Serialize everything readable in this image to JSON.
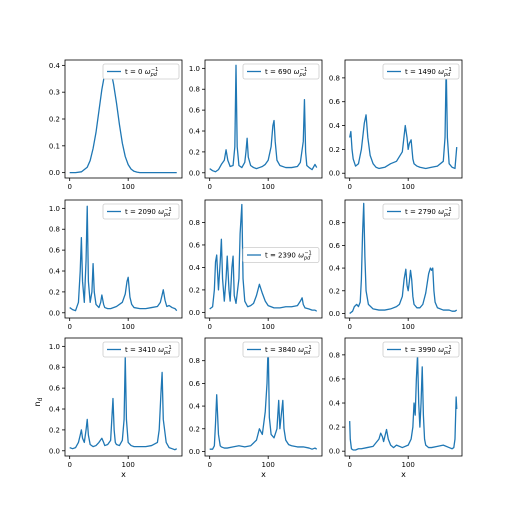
{
  "figure": {
    "ylabel": "n_d",
    "xlabel": "x"
  },
  "colors": {
    "series": "#1f77b4"
  },
  "chart_data": [
    {
      "type": "line",
      "legend": "t = 0 ωpd⁻¹",
      "legend_t": "t = 0 ",
      "legend_loc": "upper-right",
      "xlim": [
        -8,
        192
      ],
      "ylim": [
        -0.02,
        0.42
      ],
      "xticks": [
        0,
        100
      ],
      "yticks": [
        0.0,
        0.1,
        0.2,
        0.3,
        0.4
      ],
      "ytick_labels": [
        "0.0",
        "0.1",
        "0.2",
        "0.3",
        "0.4"
      ],
      "xtick_labels": [
        "0",
        "100"
      ],
      "x": [
        0,
        10,
        20,
        30,
        35,
        40,
        45,
        50,
        55,
        60,
        63,
        66,
        70,
        75,
        80,
        85,
        90,
        95,
        100,
        105,
        110,
        115,
        120,
        130,
        140,
        150,
        160,
        170,
        183
      ],
      "y": [
        0.0,
        0.0,
        0.003,
        0.02,
        0.045,
        0.09,
        0.15,
        0.23,
        0.31,
        0.37,
        0.395,
        0.4,
        0.385,
        0.33,
        0.26,
        0.18,
        0.11,
        0.06,
        0.03,
        0.013,
        0.005,
        0.002,
        0.0,
        0.0,
        0.0,
        0.0,
        0.0,
        0.0,
        0.0
      ]
    },
    {
      "type": "line",
      "legend": "t = 690 ωpd⁻¹",
      "legend_t": "t = 690 ",
      "legend_loc": "upper-right",
      "xlim": [
        -8,
        192
      ],
      "ylim": [
        -0.05,
        1.08
      ],
      "xticks": [
        0,
        100
      ],
      "yticks": [
        0.0,
        0.2,
        0.4,
        0.6,
        0.8,
        1.0
      ],
      "ytick_labels": [
        "0.0",
        "0.2",
        "0.4",
        "0.6",
        "0.8",
        "1.0"
      ],
      "xtick_labels": [
        "0",
        "100"
      ],
      "x": [
        0,
        5,
        10,
        15,
        20,
        25,
        28,
        31,
        35,
        40,
        43,
        45,
        47,
        50,
        55,
        60,
        62,
        64,
        66,
        70,
        75,
        80,
        85,
        90,
        95,
        100,
        105,
        108,
        110,
        112,
        115,
        120,
        130,
        140,
        150,
        155,
        160,
        162,
        164,
        166,
        170,
        175,
        180,
        183
      ],
      "y": [
        0.04,
        0.02,
        0.01,
        0.03,
        0.08,
        0.12,
        0.22,
        0.12,
        0.06,
        0.07,
        0.25,
        1.03,
        0.25,
        0.07,
        0.05,
        0.1,
        0.2,
        0.33,
        0.15,
        0.07,
        0.05,
        0.04,
        0.05,
        0.06,
        0.08,
        0.12,
        0.25,
        0.45,
        0.5,
        0.3,
        0.12,
        0.07,
        0.05,
        0.05,
        0.06,
        0.1,
        0.3,
        0.7,
        0.2,
        0.07,
        0.05,
        0.03,
        0.08,
        0.05
      ]
    },
    {
      "type": "line",
      "legend": "t = 1490 ωpd⁻¹",
      "legend_t": "t = 1490 ",
      "legend_loc": "upper-right",
      "xlim": [
        -8,
        192
      ],
      "ylim": [
        -0.04,
        0.95
      ],
      "xticks": [
        0,
        100
      ],
      "yticks": [
        0.0,
        0.2,
        0.4,
        0.6,
        0.8
      ],
      "ytick_labels": [
        "0.0",
        "0.2",
        "0.4",
        "0.6",
        "0.8"
      ],
      "xtick_labels": [
        "0",
        "100"
      ],
      "x": [
        0,
        2,
        4,
        6,
        10,
        15,
        20,
        25,
        28,
        31,
        35,
        40,
        45,
        50,
        60,
        70,
        80,
        90,
        95,
        98,
        100,
        102,
        105,
        108,
        110,
        115,
        120,
        130,
        140,
        150,
        160,
        163,
        165,
        167,
        170,
        175,
        180,
        183
      ],
      "y": [
        0.3,
        0.35,
        0.2,
        0.12,
        0.06,
        0.08,
        0.2,
        0.42,
        0.49,
        0.3,
        0.15,
        0.08,
        0.05,
        0.04,
        0.05,
        0.08,
        0.1,
        0.18,
        0.4,
        0.3,
        0.2,
        0.25,
        0.28,
        0.12,
        0.08,
        0.06,
        0.05,
        0.04,
        0.05,
        0.06,
        0.1,
        0.3,
        0.9,
        0.3,
        0.08,
        0.05,
        0.04,
        0.22
      ]
    },
    {
      "type": "line",
      "legend": "t = 2090 ωpd⁻¹",
      "legend_t": "t = 2090 ",
      "legend_loc": "upper-right",
      "xlim": [
        -8,
        192
      ],
      "ylim": [
        -0.05,
        1.08
      ],
      "xticks": [
        0,
        100
      ],
      "yticks": [
        0.0,
        0.2,
        0.4,
        0.6,
        0.8,
        1.0
      ],
      "ytick_labels": [
        "0.0",
        "0.2",
        "0.4",
        "0.6",
        "0.8",
        "1.0"
      ],
      "xtick_labels": [
        "0",
        "100"
      ],
      "x": [
        0,
        5,
        10,
        15,
        18,
        20,
        22,
        25,
        28,
        30,
        32,
        35,
        38,
        40,
        42,
        45,
        50,
        53,
        55,
        58,
        60,
        65,
        70,
        80,
        90,
        95,
        98,
        100,
        103,
        106,
        110,
        120,
        130,
        140,
        150,
        155,
        158,
        160,
        163,
        166,
        170,
        175,
        180,
        183
      ],
      "y": [
        0.05,
        0.03,
        0.02,
        0.1,
        0.4,
        0.72,
        0.3,
        0.1,
        0.5,
        1.02,
        0.3,
        0.1,
        0.2,
        0.47,
        0.2,
        0.08,
        0.05,
        0.1,
        0.17,
        0.08,
        0.05,
        0.04,
        0.04,
        0.06,
        0.1,
        0.18,
        0.3,
        0.34,
        0.15,
        0.08,
        0.05,
        0.04,
        0.04,
        0.05,
        0.06,
        0.1,
        0.17,
        0.22,
        0.12,
        0.06,
        0.07,
        0.05,
        0.04,
        0.02
      ]
    },
    {
      "type": "line",
      "legend": "t = 2390 ωpd⁻¹",
      "legend_t": "t = 2390 ",
      "legend_loc": "center-right",
      "xlim": [
        -8,
        192
      ],
      "ylim": [
        -0.05,
        1.0
      ],
      "xticks": [
        0,
        100
      ],
      "yticks": [
        0.0,
        0.2,
        0.4,
        0.6,
        0.8
      ],
      "ytick_labels": [
        "0.0",
        "0.2",
        "0.4",
        "0.6",
        "0.8"
      ],
      "xtick_labels": [
        "0",
        "100"
      ],
      "x": [
        0,
        5,
        8,
        10,
        12,
        15,
        18,
        20,
        22,
        25,
        28,
        30,
        33,
        35,
        38,
        40,
        42,
        45,
        50,
        52,
        55,
        57,
        60,
        65,
        70,
        75,
        80,
        85,
        90,
        95,
        100,
        110,
        120,
        130,
        140,
        150,
        155,
        158,
        160,
        163,
        170,
        175,
        180,
        183
      ],
      "y": [
        0.03,
        0.05,
        0.2,
        0.45,
        0.51,
        0.2,
        0.45,
        0.65,
        0.3,
        0.1,
        0.3,
        0.5,
        0.2,
        0.1,
        0.4,
        0.5,
        0.15,
        0.08,
        0.3,
        0.7,
        0.96,
        0.3,
        0.1,
        0.05,
        0.06,
        0.08,
        0.15,
        0.25,
        0.17,
        0.1,
        0.06,
        0.04,
        0.04,
        0.05,
        0.05,
        0.06,
        0.1,
        0.13,
        0.07,
        0.04,
        0.03,
        0.02,
        0.02,
        0.01
      ]
    },
    {
      "type": "line",
      "legend": "t = 2790 ωpd⁻¹",
      "legend_t": "t = 2790 ",
      "legend_loc": "upper-right",
      "xlim": [
        -8,
        192
      ],
      "ylim": [
        -0.04,
        1.0
      ],
      "xticks": [
        0,
        100
      ],
      "yticks": [
        0.0,
        0.2,
        0.4,
        0.6,
        0.8
      ],
      "ytick_labels": [
        "0.0",
        "0.2",
        "0.4",
        "0.6",
        "0.8"
      ],
      "xtick_labels": [
        "0",
        "100"
      ],
      "x": [
        0,
        5,
        8,
        12,
        15,
        18,
        20,
        22,
        24,
        26,
        28,
        32,
        40,
        50,
        60,
        70,
        80,
        85,
        90,
        93,
        96,
        98,
        100,
        102,
        104,
        106,
        108,
        110,
        115,
        120,
        125,
        130,
        135,
        138,
        140,
        142,
        144,
        146,
        150,
        160,
        170,
        175,
        180,
        183
      ],
      "y": [
        0.0,
        0.02,
        0.06,
        0.08,
        0.06,
        0.1,
        0.3,
        0.7,
        0.97,
        0.5,
        0.2,
        0.08,
        0.04,
        0.03,
        0.03,
        0.04,
        0.06,
        0.08,
        0.15,
        0.3,
        0.39,
        0.25,
        0.2,
        0.28,
        0.38,
        0.3,
        0.15,
        0.08,
        0.05,
        0.05,
        0.08,
        0.18,
        0.35,
        0.4,
        0.38,
        0.4,
        0.2,
        0.1,
        0.05,
        0.03,
        0.03,
        0.02,
        0.02,
        0.03
      ]
    },
    {
      "type": "line",
      "legend": "t = 3410 ωpd⁻¹",
      "legend_t": "t = 3410 ",
      "legend_loc": "upper-right",
      "xlim": [
        -8,
        192
      ],
      "ylim": [
        -0.05,
        1.08
      ],
      "xticks": [
        0,
        100
      ],
      "yticks": [
        0.0,
        0.2,
        0.4,
        0.6,
        0.8,
        1.0
      ],
      "ytick_labels": [
        "0.0",
        "0.2",
        "0.4",
        "0.6",
        "0.8",
        "1.0"
      ],
      "xtick_labels": [
        "0",
        "100"
      ],
      "x": [
        0,
        5,
        10,
        15,
        18,
        20,
        22,
        25,
        28,
        30,
        32,
        35,
        40,
        45,
        50,
        55,
        58,
        60,
        65,
        70,
        72,
        74,
        76,
        78,
        80,
        85,
        90,
        93,
        95,
        97,
        100,
        105,
        110,
        120,
        130,
        140,
        150,
        153,
        156,
        158,
        160,
        165,
        170,
        175,
        180,
        183
      ],
      "y": [
        0.03,
        0.02,
        0.03,
        0.08,
        0.15,
        0.2,
        0.12,
        0.08,
        0.2,
        0.3,
        0.15,
        0.06,
        0.04,
        0.05,
        0.08,
        0.12,
        0.08,
        0.05,
        0.06,
        0.1,
        0.3,
        0.5,
        0.2,
        0.08,
        0.06,
        0.05,
        0.1,
        0.3,
        0.9,
        0.3,
        0.08,
        0.05,
        0.04,
        0.04,
        0.04,
        0.05,
        0.08,
        0.2,
        0.55,
        0.75,
        0.3,
        0.08,
        0.03,
        0.02,
        0.01,
        0.02
      ]
    },
    {
      "type": "line",
      "legend": "t = 3840 ωpd⁻¹",
      "legend_t": "t = 3840 ",
      "legend_loc": "upper-right",
      "xlim": [
        -8,
        192
      ],
      "ylim": [
        -0.04,
        1.0
      ],
      "xticks": [
        0,
        100
      ],
      "yticks": [
        0.0,
        0.2,
        0.4,
        0.6,
        0.8
      ],
      "ytick_labels": [
        "0.0",
        "0.2",
        "0.4",
        "0.6",
        "0.8"
      ],
      "xtick_labels": [
        "0",
        "100"
      ],
      "x": [
        0,
        5,
        8,
        10,
        12,
        15,
        18,
        20,
        25,
        30,
        40,
        50,
        60,
        70,
        80,
        85,
        90,
        95,
        98,
        100,
        102,
        105,
        110,
        115,
        118,
        120,
        122,
        125,
        127,
        130,
        135,
        140,
        150,
        160,
        170,
        175,
        180,
        183
      ],
      "y": [
        0.02,
        0.02,
        0.05,
        0.25,
        0.5,
        0.15,
        0.05,
        0.04,
        0.03,
        0.03,
        0.04,
        0.05,
        0.04,
        0.05,
        0.1,
        0.2,
        0.15,
        0.35,
        0.6,
        0.95,
        0.3,
        0.15,
        0.12,
        0.2,
        0.45,
        0.2,
        0.3,
        0.45,
        0.2,
        0.1,
        0.06,
        0.05,
        0.04,
        0.04,
        0.03,
        0.02,
        0.03,
        0.02
      ]
    },
    {
      "type": "line",
      "legend": "t = 3990 ωpd⁻¹",
      "legend_t": "t = 3990 ",
      "legend_loc": "upper-right",
      "xlim": [
        -8,
        192
      ],
      "ylim": [
        -0.04,
        0.94
      ],
      "xticks": [
        0,
        100
      ],
      "yticks": [
        0.0,
        0.2,
        0.4,
        0.6,
        0.8
      ],
      "ytick_labels": [
        "0.0",
        "0.2",
        "0.4",
        "0.6",
        "0.8"
      ],
      "xtick_labels": [
        "0",
        "100"
      ],
      "x": [
        0,
        1,
        3,
        6,
        10,
        15,
        20,
        30,
        40,
        45,
        50,
        53,
        56,
        58,
        60,
        63,
        66,
        70,
        75,
        80,
        90,
        100,
        105,
        108,
        110,
        112,
        114,
        116,
        118,
        120,
        122,
        124,
        126,
        128,
        130,
        135,
        140,
        150,
        160,
        170,
        175,
        178,
        180,
        182,
        183
      ],
      "y": [
        0.25,
        0.1,
        0.02,
        0.01,
        0.01,
        0.02,
        0.02,
        0.03,
        0.04,
        0.07,
        0.1,
        0.15,
        0.12,
        0.08,
        0.12,
        0.18,
        0.1,
        0.05,
        0.03,
        0.05,
        0.03,
        0.05,
        0.1,
        0.2,
        0.4,
        0.3,
        0.6,
        0.8,
        0.4,
        0.2,
        0.4,
        0.7,
        0.3,
        0.1,
        0.05,
        0.03,
        0.03,
        0.04,
        0.05,
        0.03,
        0.02,
        0.03,
        0.1,
        0.45,
        0.35
      ]
    }
  ]
}
